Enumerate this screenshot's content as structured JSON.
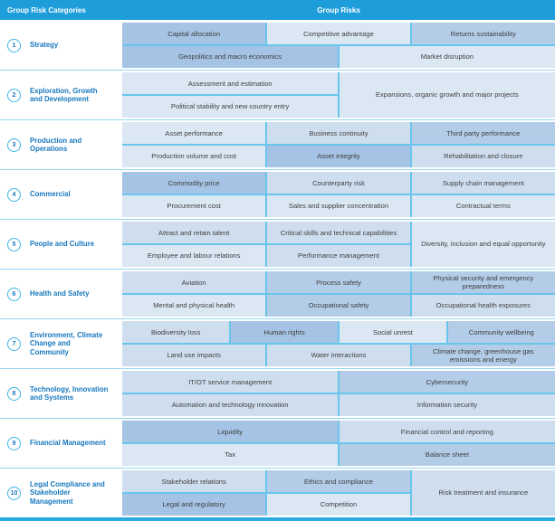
{
  "colors": {
    "header_bg": "#1d9dd9",
    "header_text": "#ffffff",
    "category_text": "#1878be",
    "circle_border": "#3fb4e6",
    "cell_text": "#404040",
    "grid_line": "#6ac5ea",
    "divider_line": "#93d6f1",
    "bottom_bar": "#2aace2",
    "shades": {
      "s1": "#dce7f4",
      "s2": "#cfdeef",
      "s3": "#b3cce8",
      "s4": "#a5c3e4"
    }
  },
  "header": {
    "left": "Group Risk Categories",
    "right": "Group Risks"
  },
  "blocks": [
    {
      "number": "1",
      "category": "Strategy",
      "cells": [
        {
          "label": "Capital allocation",
          "shade": "s4",
          "c": 1,
          "cs": 4,
          "r": 1,
          "rs": 1
        },
        {
          "label": "Competitive advantage",
          "shade": "s1",
          "c": 5,
          "cs": 4,
          "r": 1,
          "rs": 1
        },
        {
          "label": "Returns sustainability",
          "shade": "s3",
          "c": 9,
          "cs": 4,
          "r": 1,
          "rs": 1
        },
        {
          "label": "Geopolitics and macro economics",
          "shade": "s4",
          "c": 1,
          "cs": 6,
          "r": 2,
          "rs": 1
        },
        {
          "label": "Market disruption",
          "shade": "s1",
          "c": 7,
          "cs": 6,
          "r": 2,
          "rs": 1
        }
      ]
    },
    {
      "number": "2",
      "category": "Exploration, Growth and Development",
      "cells": [
        {
          "label": "Assessment and estimation",
          "shade": "s1",
          "c": 1,
          "cs": 6,
          "r": 1,
          "rs": 1
        },
        {
          "label": "Political stability and new country entry",
          "shade": "s1",
          "c": 1,
          "cs": 6,
          "r": 2,
          "rs": 1
        },
        {
          "label": "Expansions, organic growth and major projects",
          "shade": "s1",
          "c": 7,
          "cs": 6,
          "r": 1,
          "rs": 2
        }
      ]
    },
    {
      "number": "3",
      "category": "Production and Operations",
      "cells": [
        {
          "label": "Asset performance",
          "shade": "s1",
          "c": 1,
          "cs": 4,
          "r": 1,
          "rs": 1
        },
        {
          "label": "Business continuity",
          "shade": "s2",
          "c": 5,
          "cs": 4,
          "r": 1,
          "rs": 1
        },
        {
          "label": "Third party performance",
          "shade": "s3",
          "c": 9,
          "cs": 4,
          "r": 1,
          "rs": 1
        },
        {
          "label": "Production volume and cost",
          "shade": "s1",
          "c": 1,
          "cs": 4,
          "r": 2,
          "rs": 1
        },
        {
          "label": "Asset integrity",
          "shade": "s4",
          "c": 5,
          "cs": 4,
          "r": 2,
          "rs": 1
        },
        {
          "label": "Rehabilitation and closure",
          "shade": "s2",
          "c": 9,
          "cs": 4,
          "r": 2,
          "rs": 1
        }
      ]
    },
    {
      "number": "4",
      "category": "Commercial",
      "cells": [
        {
          "label": "Commodity price",
          "shade": "s4",
          "c": 1,
          "cs": 4,
          "r": 1,
          "rs": 1
        },
        {
          "label": "Counterparty risk",
          "shade": "s2",
          "c": 5,
          "cs": 4,
          "r": 1,
          "rs": 1
        },
        {
          "label": "Supply chain management",
          "shade": "s2",
          "c": 9,
          "cs": 4,
          "r": 1,
          "rs": 1
        },
        {
          "label": "Procurement cost",
          "shade": "s1",
          "c": 1,
          "cs": 4,
          "r": 2,
          "rs": 1
        },
        {
          "label": "Sales and supplier concentration",
          "shade": "s1",
          "c": 5,
          "cs": 4,
          "r": 2,
          "rs": 1
        },
        {
          "label": "Contractual terms",
          "shade": "s1",
          "c": 9,
          "cs": 4,
          "r": 2,
          "rs": 1
        }
      ]
    },
    {
      "number": "5",
      "category": "People and Culture",
      "cells": [
        {
          "label": "Attract and retain talent",
          "shade": "s2",
          "c": 1,
          "cs": 4,
          "r": 1,
          "rs": 1
        },
        {
          "label": "Critical skills and technical capabilities",
          "shade": "s2",
          "c": 5,
          "cs": 4,
          "r": 1,
          "rs": 1
        },
        {
          "label": "Employee and labour relations",
          "shade": "s1",
          "c": 1,
          "cs": 4,
          "r": 2,
          "rs": 1
        },
        {
          "label": "Performance management",
          "shade": "s2",
          "c": 5,
          "cs": 4,
          "r": 2,
          "rs": 1
        },
        {
          "label": "Diversity, inclusion and equal opportunity",
          "shade": "s1",
          "c": 9,
          "cs": 4,
          "r": 1,
          "rs": 2
        }
      ]
    },
    {
      "number": "6",
      "category": "Health and Safety",
      "cells": [
        {
          "label": "Aviation",
          "shade": "s2",
          "c": 1,
          "cs": 4,
          "r": 1,
          "rs": 1
        },
        {
          "label": "Process safety",
          "shade": "s3",
          "c": 5,
          "cs": 4,
          "r": 1,
          "rs": 1
        },
        {
          "label": "Physical security and emergency preparedness",
          "shade": "s3",
          "c": 9,
          "cs": 4,
          "r": 1,
          "rs": 1
        },
        {
          "label": "Mental and physical health",
          "shade": "s1",
          "c": 1,
          "cs": 4,
          "r": 2,
          "rs": 1
        },
        {
          "label": "Occupational safety",
          "shade": "s3",
          "c": 5,
          "cs": 4,
          "r": 2,
          "rs": 1
        },
        {
          "label": "Occupational health exposures",
          "shade": "s2",
          "c": 9,
          "cs": 4,
          "r": 2,
          "rs": 1
        }
      ]
    },
    {
      "number": "7",
      "category": "Environment, Climate Change and Community",
      "cells": [
        {
          "label": "Biodiversity loss",
          "shade": "s2",
          "c": 1,
          "cs": 3,
          "r": 1,
          "rs": 1
        },
        {
          "label": "Human rights",
          "shade": "s4",
          "c": 4,
          "cs": 3,
          "r": 1,
          "rs": 1
        },
        {
          "label": "Social unrest",
          "shade": "s1",
          "c": 7,
          "cs": 3,
          "r": 1,
          "rs": 1
        },
        {
          "label": "Community wellbeing",
          "shade": "s3",
          "c": 10,
          "cs": 3,
          "r": 1,
          "rs": 1
        },
        {
          "label": "Land use impacts",
          "shade": "s2",
          "c": 1,
          "cs": 4,
          "r": 2,
          "rs": 1
        },
        {
          "label": "Water interactions",
          "shade": "s2",
          "c": 5,
          "cs": 4,
          "r": 2,
          "rs": 1
        },
        {
          "label": "Climate change, greenhouse gas emissions and energy",
          "shade": "s3",
          "c": 9,
          "cs": 4,
          "r": 2,
          "rs": 1
        }
      ]
    },
    {
      "number": "8",
      "category": "Technology, Innovation and Systems",
      "cells": [
        {
          "label": "IT/OT service management",
          "shade": "s2",
          "c": 1,
          "cs": 6,
          "r": 1,
          "rs": 1
        },
        {
          "label": "Cybersecurity",
          "shade": "s3",
          "c": 7,
          "cs": 6,
          "r": 1,
          "rs": 1
        },
        {
          "label": "Automation and technology innovation",
          "shade": "s2",
          "c": 1,
          "cs": 6,
          "r": 2,
          "rs": 1
        },
        {
          "label": "Information security",
          "shade": "s2",
          "c": 7,
          "cs": 6,
          "r": 2,
          "rs": 1
        }
      ]
    },
    {
      "number": "9",
      "category": "Financial Management",
      "cells": [
        {
          "label": "Liquidity",
          "shade": "s4",
          "c": 1,
          "cs": 6,
          "r": 1,
          "rs": 1
        },
        {
          "label": "Financial control and reporting",
          "shade": "s2",
          "c": 7,
          "cs": 6,
          "r": 1,
          "rs": 1
        },
        {
          "label": "Tax",
          "shade": "s1",
          "c": 1,
          "cs": 6,
          "r": 2,
          "rs": 1
        },
        {
          "label": "Balance sheet",
          "shade": "s3",
          "c": 7,
          "cs": 6,
          "r": 2,
          "rs": 1
        }
      ]
    },
    {
      "number": "10",
      "category": "Legal Compliance and Stakeholder Management",
      "cells": [
        {
          "label": "Stakeholder relations",
          "shade": "s2",
          "c": 1,
          "cs": 4,
          "r": 1,
          "rs": 1
        },
        {
          "label": "Ethics and compliance",
          "shade": "s3",
          "c": 5,
          "cs": 4,
          "r": 1,
          "rs": 1
        },
        {
          "label": "Legal and regulatory",
          "shade": "s4",
          "c": 1,
          "cs": 4,
          "r": 2,
          "rs": 1
        },
        {
          "label": "Competition",
          "shade": "s1",
          "c": 5,
          "cs": 4,
          "r": 2,
          "rs": 1
        },
        {
          "label": "Risk treatment and insurance",
          "shade": "s2",
          "c": 9,
          "cs": 4,
          "r": 1,
          "rs": 2
        }
      ]
    }
  ]
}
